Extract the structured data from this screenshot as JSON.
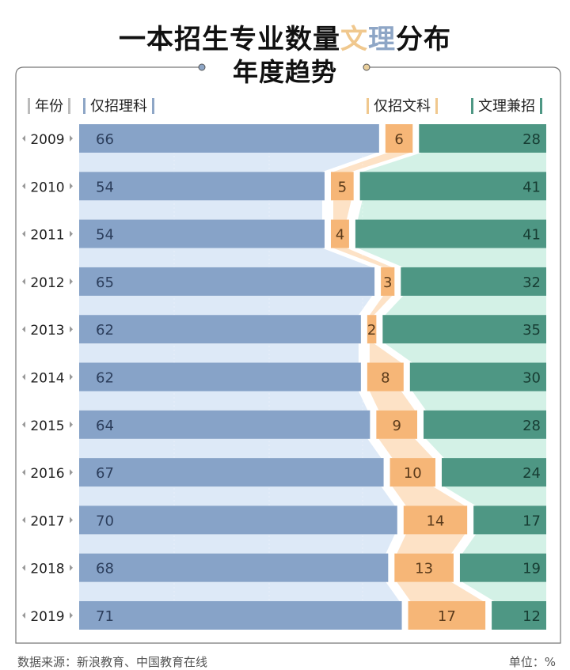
{
  "title": {
    "part1": "一本招生专业数量",
    "wen": "文",
    "li": "理",
    "part2": "分布",
    "line2": "年度趋势"
  },
  "colors": {
    "science": "#87a3c8",
    "arts": "#f6b677",
    "both": "#4e9784",
    "science_light": "#dde9f7",
    "arts_light": "#fde2c6",
    "both_light": "#d3f1e6"
  },
  "chart_data": {
    "type": "bar",
    "stacked": true,
    "orientation": "horizontal",
    "title": "一本招生专业数量文理分布年度趋势",
    "column_headers": {
      "year": "年份",
      "science": "仅招理科",
      "arts": "仅招文科",
      "both": "文理兼招"
    },
    "categories": [
      "2009",
      "2010",
      "2011",
      "2012",
      "2013",
      "2014",
      "2015",
      "2016",
      "2017",
      "2018",
      "2019"
    ],
    "series": [
      {
        "name": "仅招理科",
        "values": [
          66,
          54,
          54,
          65,
          62,
          62,
          64,
          67,
          70,
          68,
          71
        ]
      },
      {
        "name": "仅招文科",
        "values": [
          6,
          5,
          4,
          3,
          2,
          8,
          9,
          10,
          14,
          13,
          17
        ]
      },
      {
        "name": "文理兼招",
        "values": [
          28,
          41,
          41,
          32,
          35,
          30,
          28,
          24,
          17,
          19,
          12
        ]
      }
    ],
    "unit": "%",
    "xlim": [
      0,
      100
    ]
  },
  "footer": {
    "source": "数据来源：新浪教育、中国教育在线",
    "unit": "单位：%"
  }
}
